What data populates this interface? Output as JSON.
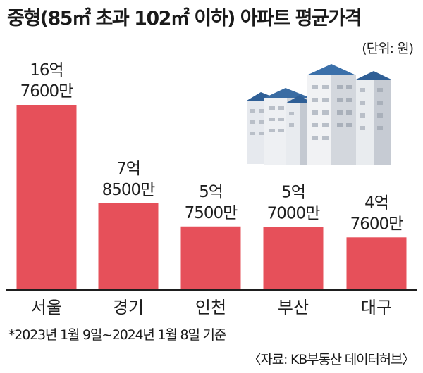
{
  "header": {
    "title": "중형(85㎡ 초과 102㎡ 이하) 아파트 평균가격",
    "unit": "(단위: 원)"
  },
  "footer": {
    "note": "*2023년 1월 9일~2024년 1월 8일 기준",
    "source": "〈자료: KB부동산 데이터허브〉"
  },
  "illustration": {
    "icon": "apartment-buildings-icon"
  },
  "colors": {
    "bar": "#e6505a",
    "axis": "#1e1e1e"
  },
  "chart_data": {
    "type": "bar",
    "title": "중형(85㎡ 초과 102㎡ 이하) 아파트 평균가격",
    "unit_note": "(단위: 원)",
    "categories": [
      "서울",
      "경기",
      "인천",
      "부산",
      "대구"
    ],
    "values": [
      1676000000,
      785000000,
      575000000,
      570000000,
      476000000
    ],
    "value_labels": [
      [
        "16억",
        "7600만"
      ],
      [
        "7억",
        "8500만"
      ],
      [
        "5억",
        "7500만"
      ],
      [
        "5억",
        "7000만"
      ],
      [
        "4억",
        "7600만"
      ]
    ],
    "ylim": [
      0,
      1676000000
    ],
    "grid": false,
    "legend": "none"
  }
}
